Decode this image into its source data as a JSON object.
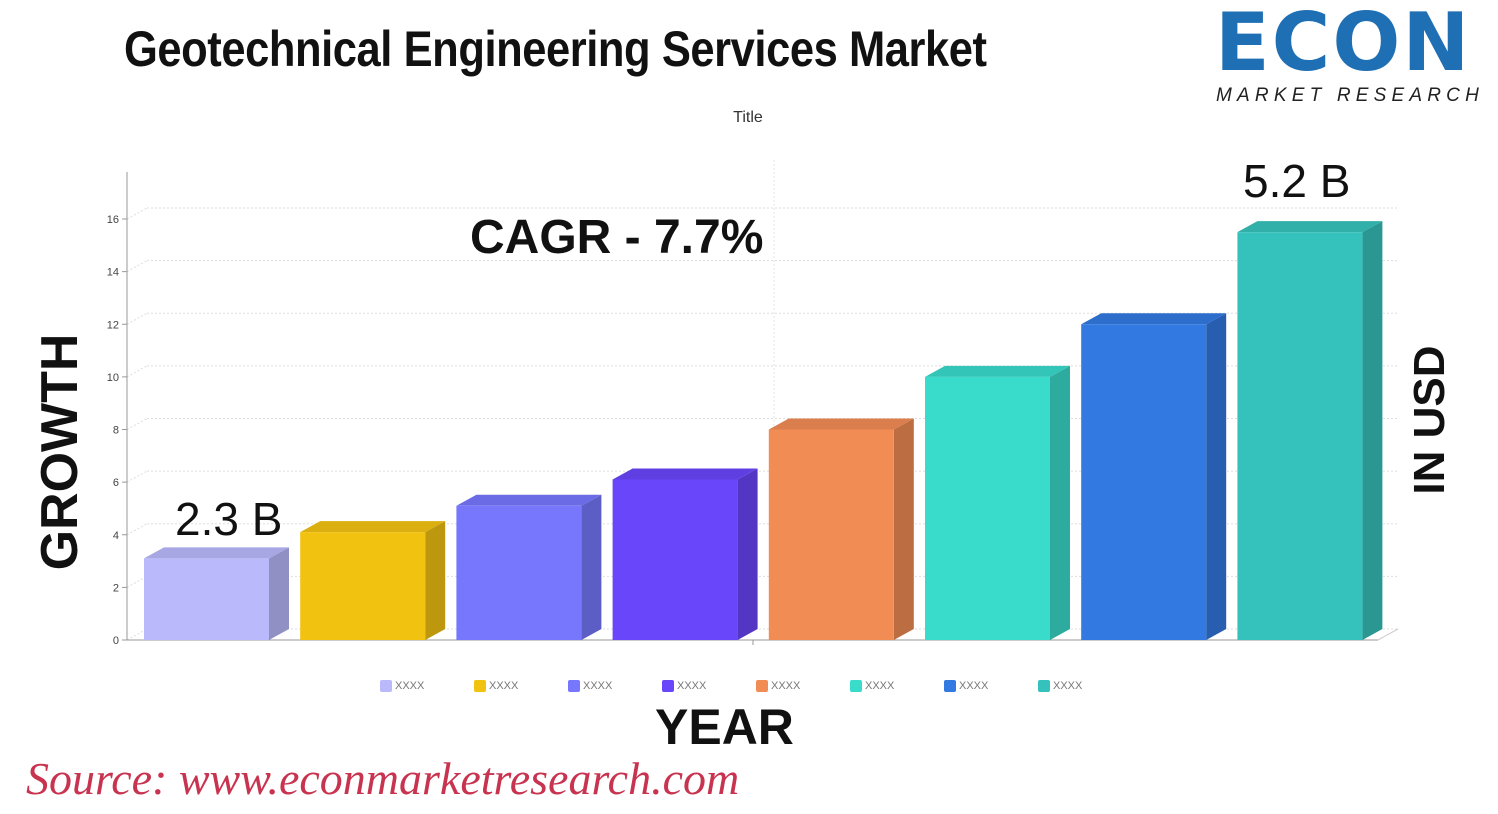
{
  "header": {
    "title": "Geotechnical Engineering Services Market",
    "logo_text": "ECON",
    "logo_subtext": "MARKET RESEARCH"
  },
  "chart_data": {
    "type": "bar",
    "title": "Title",
    "categories": [
      "XXXX",
      "XXXX",
      "XXXX",
      "XXXX",
      "XXXX",
      "XXXX",
      "XXXX",
      "XXXX"
    ],
    "values": [
      3.1,
      4.1,
      5.1,
      6.1,
      8.0,
      10.0,
      12.0,
      15.5
    ],
    "colors": [
      "#b9b9fc",
      "#f2c211",
      "#7777fe",
      "#6a46fb",
      "#f28c55",
      "#39dbcb",
      "#3279e1",
      "#36c2bc"
    ],
    "ylim": [
      0,
      16
    ],
    "yticks": [
      0,
      2,
      4,
      6,
      8,
      10,
      12,
      14,
      16
    ],
    "grid": true,
    "legend": "bottom",
    "ylabel": "GROWTH",
    "xlabel": "YEAR",
    "right_label": "IN USD",
    "annotations": {
      "cagr": "CAGR - 7.7%",
      "first": "2.3 B",
      "last": "5.2 B"
    }
  },
  "footer": {
    "source": "Source:  www.econmarketresearch.com"
  }
}
